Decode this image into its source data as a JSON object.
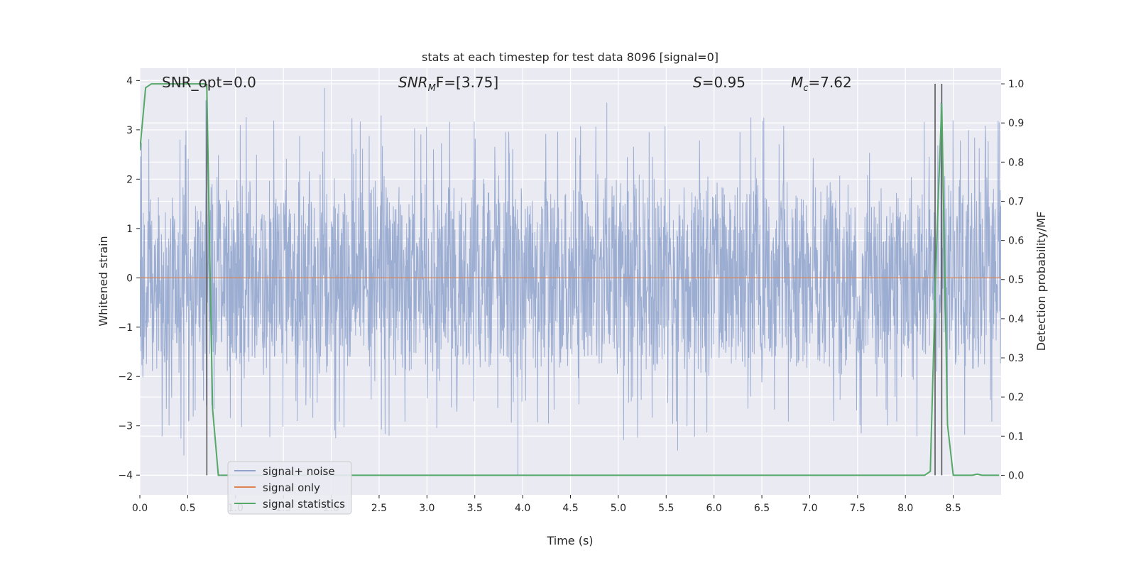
{
  "chart_data": {
    "type": "line",
    "title": "stats at each timestep for test data 8096 [signal=0]",
    "xlabel": "Time (s)",
    "ylabel": "Whitened strain",
    "ylabel_right": "Detection probability/MF",
    "xlim": [
      0.0,
      9.0
    ],
    "ylim": [
      -4.4,
      4.25
    ],
    "ylim_right": [
      -0.05,
      1.04
    ],
    "x_ticks": [
      "0.0",
      "0.5",
      "1.0",
      "1.5",
      "2.0",
      "2.5",
      "3.0",
      "3.5",
      "4.0",
      "4.5",
      "5.0",
      "5.5",
      "6.0",
      "6.5",
      "7.0",
      "7.5",
      "8.0",
      "8.5"
    ],
    "y_ticks": [
      "4",
      "3",
      "2",
      "1",
      "0",
      "−1",
      "−2",
      "−3",
      "−4"
    ],
    "y_ticks_right": [
      "1.0",
      "0.9",
      "0.8",
      "0.7",
      "0.6",
      "0.5",
      "0.4",
      "0.3",
      "0.2",
      "0.1",
      "0.0"
    ],
    "grid": true,
    "legend_position": "lower-left",
    "annotations": {
      "snr_opt": "SNR_opt=0.0",
      "snr_mf_label": "SNR",
      "snr_mf_sub": "M",
      "snr_mf_value": "F=[3.75]",
      "s_label": "S",
      "s_value": "=0.95",
      "mc_label": "M",
      "mc_sub": "c",
      "mc_value": "=7.62"
    },
    "series": [
      {
        "name": "signal+ noise",
        "color": "#8ea2cc",
        "note_values": "dense whitened noise, approx. uniform in [-2, 2] with spikes up to about ±3.9",
        "spikes": [
          {
            "x": 0.46,
            "y": -3.6
          },
          {
            "x": 0.69,
            "y": 3.6
          },
          {
            "x": 1.93,
            "y": 3.85
          },
          {
            "x": 3.95,
            "y": -4.0
          },
          {
            "x": 4.88,
            "y": 3.55
          },
          {
            "x": 5.62,
            "y": -3.5
          },
          {
            "x": 8.37,
            "y": 3.55
          },
          {
            "x": 8.98,
            "y": 3.15
          }
        ]
      },
      {
        "name": "signal only",
        "color": "#dd8452",
        "x": [
          0.0,
          9.0
        ],
        "y": [
          0.0,
          0.0
        ]
      },
      {
        "name": "signal statistics",
        "color": "#55a868",
        "axis": "right",
        "x": [
          0.0,
          0.06,
          0.12,
          0.25,
          0.5,
          0.68,
          0.7,
          0.76,
          0.82,
          1.0,
          8.0,
          8.2,
          8.26,
          8.32,
          8.38,
          8.44,
          8.5,
          8.7,
          8.75,
          8.8,
          8.98
        ],
        "y": [
          0.83,
          0.99,
          1.0,
          1.0,
          1.0,
          1.0,
          0.99,
          0.17,
          0.0,
          0.0,
          0.0,
          0.0,
          0.01,
          0.55,
          0.95,
          0.13,
          0.0,
          0.0,
          0.003,
          0.0,
          0.0
        ]
      }
    ],
    "vertical_lines": [
      0.7,
      8.31,
      8.38
    ]
  }
}
